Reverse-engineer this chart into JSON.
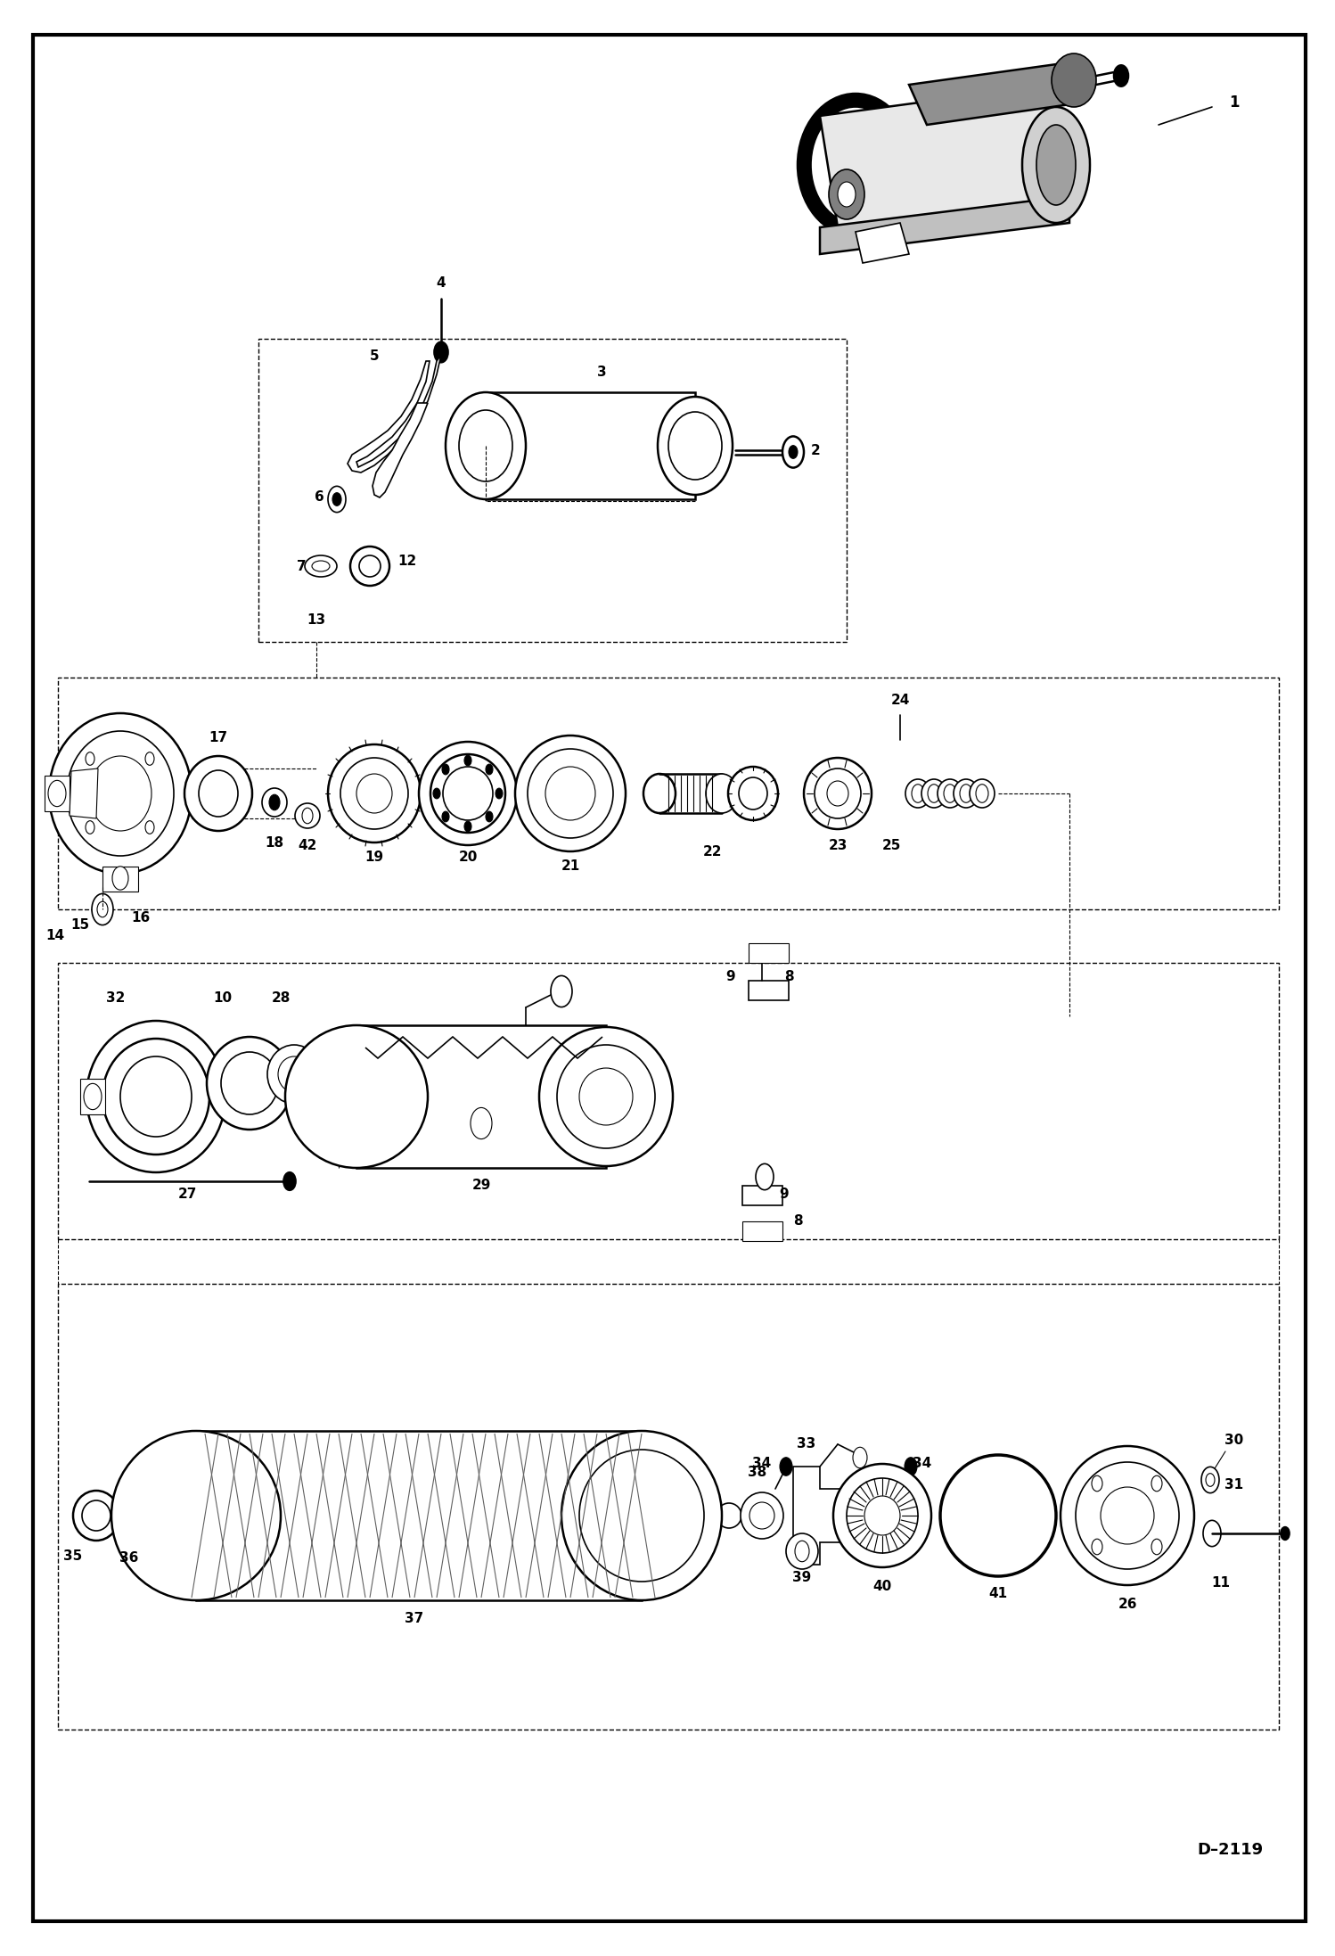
{
  "bg_color": "#ffffff",
  "border_color": "#000000",
  "text_color": "#000000",
  "diagram_id": "D-2119",
  "figsize": [
    14.98,
    21.94
  ],
  "dpi": 100,
  "border": [
    0.025,
    0.018,
    0.955,
    0.964
  ],
  "diagram_code": "D-2119",
  "label_fontsize": 11,
  "label_fontsize_small": 10
}
